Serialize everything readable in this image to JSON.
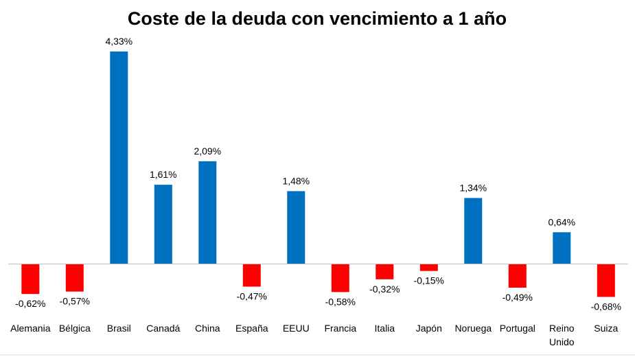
{
  "chart_data": {
    "type": "bar",
    "title": "Coste de la deuda con vencimiento a 1 año",
    "xlabel": "",
    "ylabel": "",
    "categories": [
      [
        "Alemania"
      ],
      [
        "Bélgica"
      ],
      [
        "Brasil"
      ],
      [
        "Canadá"
      ],
      [
        "China"
      ],
      [
        "España"
      ],
      [
        "EEUU"
      ],
      [
        "Francia"
      ],
      [
        "Italia"
      ],
      [
        "Japón"
      ],
      [
        "Noruega"
      ],
      [
        "Portugal"
      ],
      [
        "Reino",
        "Unido"
      ],
      [
        "Suiza"
      ]
    ],
    "values": [
      -0.62,
      -0.57,
      4.33,
      1.61,
      2.09,
      -0.47,
      1.48,
      -0.58,
      -0.32,
      -0.15,
      1.34,
      -0.49,
      0.64,
      -0.68
    ],
    "value_labels": [
      "-0,62%",
      "-0,57%",
      "4,33%",
      "1,61%",
      "2,09%",
      "-0,47%",
      "1,48%",
      "-0,58%",
      "-0,32%",
      "-0,15%",
      "1,34%",
      "-0,49%",
      "0,64%",
      "-0,68%"
    ],
    "ylim": [
      -0.7,
      4.33
    ],
    "grid": false,
    "legend": "none",
    "colors": {
      "positive": "#0070c0",
      "negative": "#ff0000"
    }
  }
}
